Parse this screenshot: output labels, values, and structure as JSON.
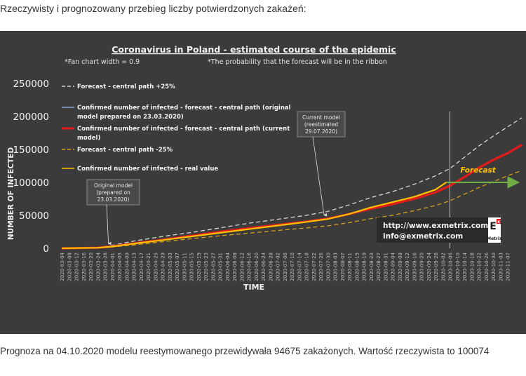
{
  "page": {
    "intro": "Rzeczywisty i prognozowany przebieg liczby potwierdzonych zakażeń:",
    "caption": "Prognoza na 04.10.2020 modelu reestymowanego przewidywała 94675 zakażonych. Wartość rzeczywista to 100074"
  },
  "chart_data": {
    "type": "line",
    "title": "Coronavirus in Poland - estimated course of the epidemic",
    "subtitles": [
      "*Fan chart width = 0.9",
      "*The probability that the forecast will be in the ribbon"
    ],
    "xlabel": "TIME",
    "ylabel": "NUMBER OF INFECTED",
    "ylim": [
      0,
      250000
    ],
    "yticks": [
      "0",
      "50000",
      "100000",
      "150000",
      "200000",
      "250000"
    ],
    "grid": false,
    "legend_position": "top-left",
    "x_start": "2020-03-04",
    "x_step_days": 4,
    "x_labels": [
      "2020-03-04",
      "2020-03-08",
      "2020-03-12",
      "2020-03-16",
      "2020-03-20",
      "2020-03-24",
      "2020-03-28",
      "2020-04-01",
      "2020-04-05",
      "2020-04-09",
      "2020-04-13",
      "2020-04-17",
      "2020-04-21",
      "2020-04-25",
      "2020-04-29",
      "2020-05-03",
      "2020-05-07",
      "2020-05-11",
      "2020-05-15",
      "2020-05-19",
      "2020-05-23",
      "2020-05-27",
      "2020-05-31",
      "2020-06-04",
      "2020-06-08",
      "2020-06-12",
      "2020-06-16",
      "2020-06-20",
      "2020-06-24",
      "2020-06-28",
      "2020-07-02",
      "2020-07-06",
      "2020-07-10",
      "2020-07-14",
      "2020-07-18",
      "2020-07-22",
      "2020-07-26",
      "2020-07-30",
      "2020-08-03",
      "2020-08-07",
      "2020-08-11",
      "2020-08-15",
      "2020-08-19",
      "2020-08-23",
      "2020-08-27",
      "2020-08-31",
      "2020-09-04",
      "2020-09-08",
      "2020-09-12",
      "2020-09-16",
      "2020-09-20",
      "2020-09-24",
      "2020-09-28",
      "2020-10-02",
      "2020-10-06",
      "2020-10-10",
      "2020-10-14",
      "2020-10-18",
      "2020-10-22",
      "2020-10-26",
      "2020-10-30",
      "2020-11-03",
      "2020-11-07"
    ],
    "series": [
      {
        "name": "Forecast - central path +25%",
        "color": "#d9d9d9",
        "dash": true,
        "points": [
          [
            "2020-03-04",
            0
          ],
          [
            "2020-03-24",
            1500
          ],
          [
            "2020-04-01",
            4500
          ],
          [
            "2020-04-13",
            11000
          ],
          [
            "2020-04-29",
            18000
          ],
          [
            "2020-05-15",
            24000
          ],
          [
            "2020-05-31",
            31000
          ],
          [
            "2020-06-16",
            38000
          ],
          [
            "2020-07-02",
            44000
          ],
          [
            "2020-07-18",
            50000
          ],
          [
            "2020-07-30",
            56000
          ],
          [
            "2020-08-11",
            66000
          ],
          [
            "2020-08-23",
            77000
          ],
          [
            "2020-09-04",
            86000
          ],
          [
            "2020-09-16",
            97000
          ],
          [
            "2020-09-28",
            110000
          ],
          [
            "2020-10-06",
            121000
          ],
          [
            "2020-10-14",
            138000
          ],
          [
            "2020-10-22",
            155000
          ],
          [
            "2020-10-30",
            170000
          ],
          [
            "2020-11-07",
            184000
          ],
          [
            "2020-11-15",
            198000
          ]
        ]
      },
      {
        "name": "Confirmed number of infected - forecast - central path (original model prepared on 23.03.2020)",
        "color": "#8ea9db",
        "dash": false,
        "points": [
          [
            "2020-03-04",
            0
          ],
          [
            "2020-03-20",
            500
          ],
          [
            "2020-03-28",
            2000
          ],
          [
            "2020-04-13",
            7000
          ],
          [
            "2020-04-29",
            13000
          ],
          [
            "2020-05-15",
            19000
          ],
          [
            "2020-05-31",
            25000
          ],
          [
            "2020-06-16",
            30000
          ],
          [
            "2020-07-02",
            35000
          ],
          [
            "2020-07-18",
            40000
          ],
          [
            "2020-07-30",
            45000
          ]
        ]
      },
      {
        "name": "Confirmed number of infected - forecast - central path (current model)",
        "color": "#e31a1c",
        "dash": false,
        "points": [
          [
            "2020-03-04",
            0
          ],
          [
            "2020-03-24",
            1000
          ],
          [
            "2020-04-01",
            3000
          ],
          [
            "2020-04-13",
            7500
          ],
          [
            "2020-04-29",
            13000
          ],
          [
            "2020-05-15",
            19000
          ],
          [
            "2020-05-31",
            25000
          ],
          [
            "2020-06-16",
            30500
          ],
          [
            "2020-07-02",
            35500
          ],
          [
            "2020-07-18",
            40500
          ],
          [
            "2020-07-30",
            45000
          ],
          [
            "2020-08-11",
            52000
          ],
          [
            "2020-08-23",
            60000
          ],
          [
            "2020-09-04",
            67000
          ],
          [
            "2020-09-16",
            75000
          ],
          [
            "2020-09-28",
            85000
          ],
          [
            "2020-10-06",
            95000
          ],
          [
            "2020-10-14",
            108000
          ],
          [
            "2020-10-22",
            122000
          ],
          [
            "2020-10-30",
            134000
          ],
          [
            "2020-11-07",
            144000
          ],
          [
            "2020-11-15",
            157000
          ]
        ]
      },
      {
        "name": "Forecast - central path -25%",
        "color": "#d4a020",
        "dash": true,
        "points": [
          [
            "2020-03-04",
            0
          ],
          [
            "2020-03-24",
            700
          ],
          [
            "2020-04-01",
            2000
          ],
          [
            "2020-04-13",
            5000
          ],
          [
            "2020-04-29",
            10000
          ],
          [
            "2020-05-15",
            14500
          ],
          [
            "2020-05-31",
            19000
          ],
          [
            "2020-06-16",
            23000
          ],
          [
            "2020-07-02",
            27000
          ],
          [
            "2020-07-18",
            31000
          ],
          [
            "2020-07-30",
            34000
          ],
          [
            "2020-08-11",
            39000
          ],
          [
            "2020-08-23",
            45000
          ],
          [
            "2020-09-04",
            50000
          ],
          [
            "2020-09-16",
            57000
          ],
          [
            "2020-09-28",
            65000
          ],
          [
            "2020-10-06",
            72000
          ],
          [
            "2020-10-14",
            82000
          ],
          [
            "2020-10-22",
            92000
          ],
          [
            "2020-10-30",
            101000
          ],
          [
            "2020-11-07",
            110000
          ],
          [
            "2020-11-15",
            118000
          ]
        ]
      },
      {
        "name": "Confirmed number of infected - real value",
        "color": "#ffc000",
        "dash": false,
        "points": [
          [
            "2020-03-04",
            0
          ],
          [
            "2020-03-24",
            900
          ],
          [
            "2020-04-01",
            2700
          ],
          [
            "2020-04-13",
            7000
          ],
          [
            "2020-04-29",
            12500
          ],
          [
            "2020-05-15",
            18000
          ],
          [
            "2020-05-31",
            23500
          ],
          [
            "2020-06-16",
            29000
          ],
          [
            "2020-07-02",
            34500
          ],
          [
            "2020-07-18",
            40000
          ],
          [
            "2020-07-30",
            44500
          ],
          [
            "2020-08-11",
            52000
          ],
          [
            "2020-08-23",
            62000
          ],
          [
            "2020-09-04",
            70000
          ],
          [
            "2020-09-16",
            78000
          ],
          [
            "2020-09-28",
            89000
          ],
          [
            "2020-10-04",
            100074
          ]
        ]
      }
    ],
    "vertical_line_at": "2020-10-06",
    "annotations": [
      {
        "text": "Original model (prepared on 23.03.2020)",
        "lines": [
          "Original model",
          "(prepared on",
          "23.03.2020)"
        ],
        "points_to": [
          "2020-03-30",
          3000
        ]
      },
      {
        "text": "Current model (reestimated 29.07.2020)",
        "lines": [
          "Current model",
          "(reestimated",
          "29.07.2020)"
        ],
        "points_to": [
          "2020-07-28",
          46000
        ]
      }
    ],
    "forecast_arrow": {
      "label": "Forecast",
      "label_color": "#ffc000",
      "color": "#70ad47",
      "from": [
        "2020-10-04",
        100074
      ],
      "to": [
        "2020-11-13",
        100074
      ]
    },
    "watermark": {
      "lines": [
        "http://www.exmetrix.com",
        "info@exmetrix.com"
      ],
      "logo_lines": [
        "E",
        "x",
        "Metrix"
      ]
    }
  }
}
